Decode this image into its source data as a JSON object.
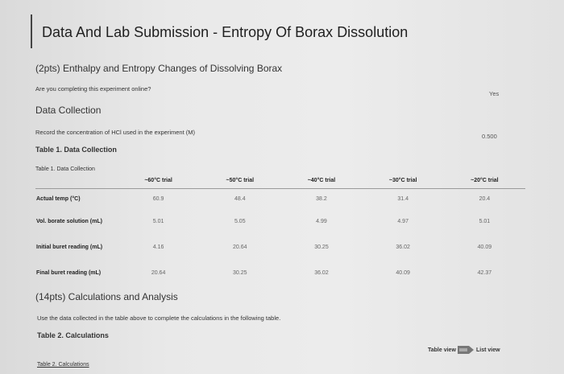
{
  "page": {
    "title": "Data And Lab Submission - Entropy Of Borax Dissolution",
    "section1_title": "(2pts) Enthalpy and Entropy Changes of Dissolving Borax",
    "question": "Are you completing this experiment online?",
    "question_answer": "Yes",
    "data_collection_heading": "Data Collection",
    "hcl_prompt": "Record the concentration of HCl used in the experiment (M)",
    "hcl_value": "0.500",
    "table1_heading": "Table 1. Data Collection",
    "table1_caption": "Table 1. Data Collection",
    "section2_title": "(14pts) Calculations and Analysis",
    "section2_instruction": "Use the data collected in the table above to complete the calculations in the following table.",
    "table2_heading": "Table 2. Calculations",
    "table2_caption": "Table 2. Calculations",
    "table_view_label": "Table view",
    "list_view_label": "List view"
  },
  "table1": {
    "columns": [
      "~60°C trial",
      "~50°C trial",
      "~40°C trial",
      "~30°C trial",
      "~20°C trial"
    ],
    "rows": [
      {
        "label": "Actual temp (°C)",
        "values": [
          "60.9",
          "48.4",
          "38.2",
          "31.4",
          "20.4"
        ]
      },
      {
        "label": "Vol. borate solution (mL)",
        "values": [
          "5.01",
          "5.05",
          "4.99",
          "4.97",
          "5.01"
        ]
      },
      {
        "label": "Initial buret reading (mL)",
        "values": [
          "4.16",
          "20.64",
          "30.25",
          "36.02",
          "40.09"
        ]
      },
      {
        "label": "Final buret reading (mL)",
        "values": [
          "20.64",
          "30.25",
          "36.02",
          "40.09",
          "42.37"
        ]
      }
    ]
  }
}
